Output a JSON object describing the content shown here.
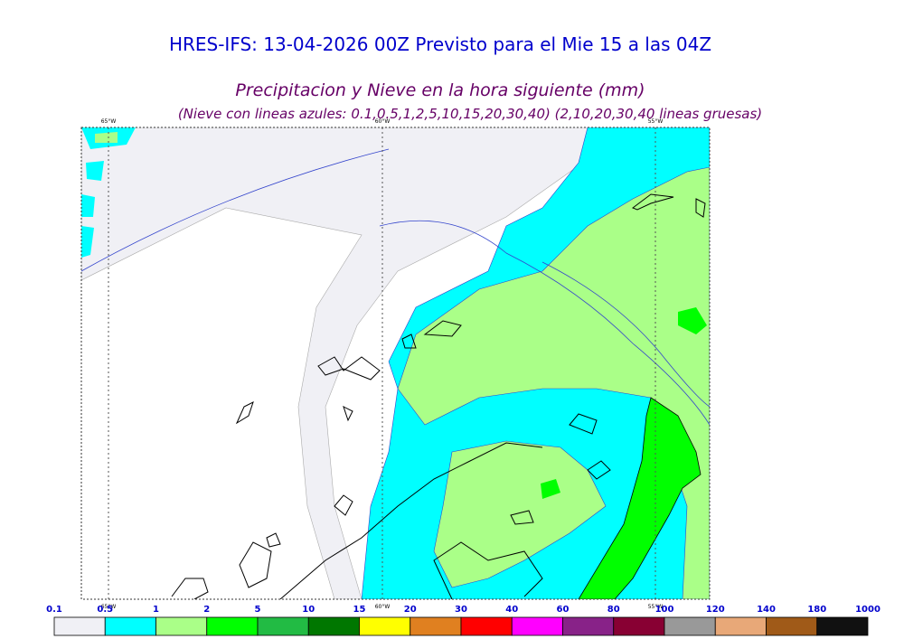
{
  "title": "HRES-IFS: 13-04-2026 00Z Previsto para el Mie 15 a las 04Z",
  "subtitle": "Precipitacion y Nieve en la hora siguiente (mm)",
  "note": "(Nieve con lineas azules: 0.1,0.5,1,2,5,10,15,20,30,40)  (2,10,20,30,40 lineas gruesas)",
  "meridians": [
    "65°W",
    "60°W",
    "55°W"
  ],
  "colorbar": {
    "labels": [
      "0.1",
      "0.5",
      "1",
      "2",
      "5",
      "10",
      "15",
      "20",
      "30",
      "40",
      "60",
      "80",
      "100",
      "120",
      "140",
      "180",
      "1000"
    ],
    "colors": [
      "#f0f0f5",
      "#00ffff",
      "#aaff88",
      "#00ff00",
      "#22bb44",
      "#007700",
      "#ffff00",
      "#e08020",
      "#ff0000",
      "#ff00ff",
      "#882288",
      "#880033",
      "#999999",
      "#e8a878",
      "#a05a18",
      "#111111"
    ]
  }
}
